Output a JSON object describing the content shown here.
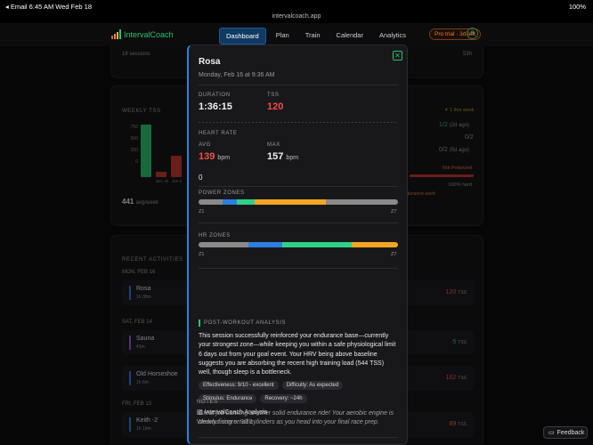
{
  "statusbar": {
    "left": "◂ Email   6:45 AM   Wed Feb 18",
    "right": "100%"
  },
  "urlbar": {
    "url": "intervalcoach.app"
  },
  "nav": {
    "brand": "IntervalCoach",
    "links": [
      "Dashboard",
      "Plan",
      "Train",
      "Calendar",
      "Analytics"
    ],
    "trial": "Pro trial · 3d left",
    "user_initial": "S"
  },
  "background": {
    "sessions_count": "18 sessions",
    "sessions_time": "53h",
    "weekly_tss_title": "WEEKLY TSS",
    "tss_ticks": [
      "750",
      "500",
      "250",
      "0"
    ],
    "tss_bar_labels": [
      "Dec 30",
      "Jan 6"
    ],
    "avg_week_value": "441",
    "avg_week_unit": "avg/week",
    "this_week": "1 this week",
    "intensity_rows": [
      {
        "value": "1/2",
        "label": "(2d ago)"
      },
      {
        "value": "0/2",
        "label": ""
      },
      {
        "value": "0/2",
        "label": "(5d ago)"
      }
    ],
    "polarized": "Not Polarized",
    "pct_hard": "100% hard",
    "endurance_work": "durance work",
    "recent_title": "RECENT ACTIVITIES",
    "groups": [
      {
        "day": "MON, FEB 16",
        "items": [
          {
            "name": "Rosa",
            "dur": "1h 36m",
            "tss": "120",
            "color": "#2d7fe0"
          }
        ]
      },
      {
        "day": "SAT, FEB 14",
        "items": [
          {
            "name": "Sauna",
            "dur": "41m",
            "tss": "5",
            "color": "#9b59d0"
          },
          {
            "name": "Old Horseshoe",
            "dur": "1h 6m",
            "tss": "162",
            "color": "#2d7fe0"
          }
        ]
      },
      {
        "day": "FRI, FEB 13",
        "items": [
          {
            "name": "Keith -2",
            "dur": "1h 16m",
            "tss": "89",
            "color": "#2d7fe0"
          }
        ]
      }
    ],
    "tss_unit": "TSS"
  },
  "modal": {
    "title": "Rosa",
    "date": "Monday, Feb 16 at 9:36 AM",
    "duration_label": "DURATION",
    "duration": "1:36:15",
    "tss_label": "TSS",
    "tss": "120",
    "hr_title": "HEART RATE",
    "avg_label": "AVG",
    "avg": "139",
    "max_label": "MAX",
    "max": "157",
    "bpm": "bpm",
    "zero": "0",
    "power_title": "POWER ZONES",
    "hr_zones_title": "HR ZONES",
    "z_start": "Z1",
    "z_end": "Z7",
    "power_zones": [
      {
        "pct": 12,
        "color": "#8a8a8a"
      },
      {
        "pct": 7,
        "color": "#2d7fe0"
      },
      {
        "pct": 9,
        "color": "#2fd18a"
      },
      {
        "pct": 36,
        "color": "#f5a623"
      },
      {
        "pct": 36,
        "color": "#8a8a8a"
      }
    ],
    "hr_zones": [
      {
        "pct": 25,
        "color": "#8a8a8a"
      },
      {
        "pct": 17,
        "color": "#2d7fe0"
      },
      {
        "pct": 35,
        "color": "#2fd18a"
      },
      {
        "pct": 23,
        "color": "#f5a623"
      }
    ],
    "pwa_title": "POST-WORKOUT ANALYSIS",
    "analysis": "This session successfully reinforced your endurance base—currently your strongest zone—while keeping you within a safe physiological limit 6 days out from your goal event. Your HRV being above baseline suggests you are absorbing the recent high training load (544 TSS) well, though sleep is a bottleneck.",
    "chips_row1": [
      "Effectiveness: 9/10 - excellent",
      "Difficulty: As expected"
    ],
    "chips_row2": [
      "Stimulus: Endurance",
      "Recovery: ~24h"
    ],
    "encouragement": "Great job banking another solid endurance ride! Your aerobic engine is clearly firing on all cylinders as you head into your final race prep.",
    "notes_title": "NOTES",
    "notes_line1": "IntervalCoach Analysis",
    "notes_line2": "Workout score: 9/10"
  },
  "feedback": {
    "label": "Feedback"
  }
}
